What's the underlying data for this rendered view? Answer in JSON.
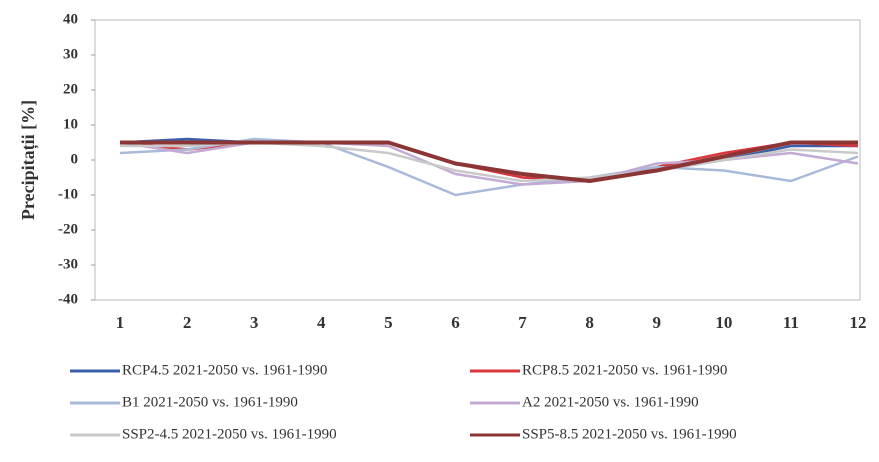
{
  "chart_data": {
    "type": "line",
    "y_label": "Precipitații [%]",
    "x": [
      1,
      2,
      3,
      4,
      5,
      6,
      7,
      8,
      9,
      10,
      11,
      12
    ],
    "xlim": [
      1,
      12
    ],
    "xticks": [
      1,
      2,
      3,
      4,
      5,
      6,
      7,
      8,
      9,
      10,
      11,
      12
    ],
    "ylim": [
      -40,
      40
    ],
    "yticks": [
      40,
      30,
      20,
      10,
      0,
      -10,
      -20,
      -30,
      -40
    ],
    "grid": false,
    "legend": "bottom",
    "series": [
      {
        "name": "RCP4.5 2021-2050 vs. 1961-1990",
        "color": "#3b5ea8",
        "values": [
          5,
          6,
          5,
          5,
          5,
          -1,
          -4,
          -6,
          -3,
          0,
          4,
          4
        ]
      },
      {
        "name": "RCP8.5 2021-2050 vs. 1961-1990",
        "color": "#d9363e",
        "values": [
          5,
          3,
          5,
          5,
          5,
          -1,
          -5,
          -6,
          -2,
          2,
          5,
          4
        ]
      },
      {
        "name": "B1 2021-2050 vs. 1961-1990",
        "color": "#a9b9da",
        "values": [
          2,
          3,
          6,
          5,
          -2,
          -10,
          -7,
          -5,
          -2,
          -3,
          -6,
          1
        ]
      },
      {
        "name": "A2 2021-2050 vs. 1961-1990",
        "color": "#c3aad3",
        "values": [
          5,
          2,
          5,
          5,
          4,
          -4,
          -7,
          -6,
          -1,
          0,
          2,
          -1
        ]
      },
      {
        "name": "SSP2-4.5 2021-2050 vs. 1961-1990",
        "color": "#c9c9c9",
        "values": [
          4,
          4,
          5,
          4,
          2,
          -3,
          -6,
          -5,
          -3,
          0,
          3,
          2
        ]
      },
      {
        "name": "SSP5-8.5 2021-2050 vs. 1961-1990",
        "color": "#8b3535",
        "values": [
          5,
          5,
          5,
          5,
          5,
          -1,
          -4,
          -6,
          -3,
          1,
          5,
          5
        ]
      }
    ]
  }
}
